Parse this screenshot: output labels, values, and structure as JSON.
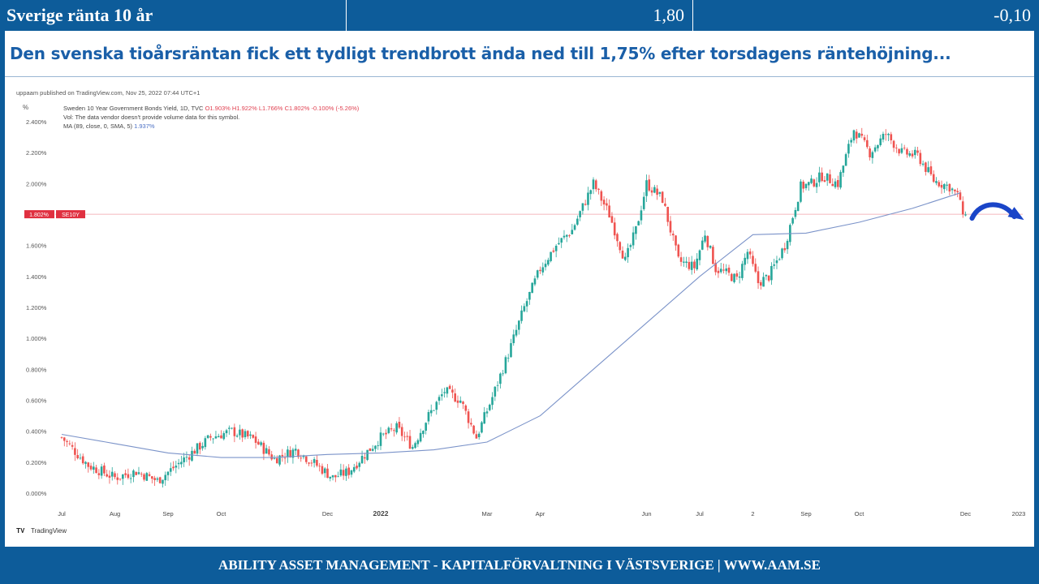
{
  "header": {
    "title": "Sverige ränta 10 år",
    "value": "1,80",
    "change": "-0,10"
  },
  "headline": "Den svenska tioårsräntan fick ett tydligt trendbrott ända ned till 1,75% efter torsdagens räntehöjning...",
  "footer": "ABILITY ASSET MANAGEMENT -  KAPITALFÖRVALTNING I VÄSTSVERIGE   |   WWW.AAM.SE",
  "colors": {
    "brand_blue": "#0d5c9a",
    "headline_blue": "#1a5fa8",
    "up_candle": "#26a69a",
    "down_candle": "#ef5350",
    "ma_line": "#7b93c9",
    "price_line": "#f0a0a8",
    "price_label_bg": "#e03040",
    "arrow": "#1a45c8"
  },
  "chart_data": {
    "type": "candlestick",
    "published_note": "uppaam published on TradingView.com, Nov 25, 2022 07:44 UTC+1",
    "unit_label": "%",
    "legend": {
      "symbol_line": "Sweden 10 Year Government Bonds Yield, 1D, TVC",
      "ohlc": {
        "O": "1.903%",
        "H": "1.922%",
        "L": "1.766%",
        "C": "1.802%",
        "change": "-0.100% (-5.26%)"
      },
      "volume_note": "Vol: The data vendor doesn't provide volume data for this symbol.",
      "ma_label": "MA (89, close, 0, SMA, 5)",
      "ma_value": "1.937%"
    },
    "y_axis": {
      "ticks": [
        "0.000%",
        "0.200%",
        "0.400%",
        "0.600%",
        "0.800%",
        "1.000%",
        "1.200%",
        "1.400%",
        "1.600%",
        "1.800%",
        "2.000%",
        "2.200%",
        "2.400%"
      ],
      "range": [
        0,
        2.5
      ]
    },
    "x_axis": {
      "labels": [
        {
          "text": "Jul",
          "bold": false,
          "month": 0
        },
        {
          "text": "Aug",
          "bold": false,
          "month": 1
        },
        {
          "text": "Sep",
          "bold": false,
          "month": 2
        },
        {
          "text": "Oct",
          "bold": false,
          "month": 3
        },
        {
          "text": "Dec",
          "bold": false,
          "month": 5
        },
        {
          "text": "2022",
          "bold": true,
          "month": 6
        },
        {
          "text": "Mar",
          "bold": false,
          "month": 8
        },
        {
          "text": "Apr",
          "bold": false,
          "month": 9
        },
        {
          "text": "Jun",
          "bold": false,
          "month": 11
        },
        {
          "text": "Jul",
          "bold": false,
          "month": 12
        },
        {
          "text": "2",
          "bold": false,
          "month": 13
        },
        {
          "text": "Sep",
          "bold": false,
          "month": 14
        },
        {
          "text": "Oct",
          "bold": false,
          "month": 15
        },
        {
          "text": "Dec",
          "bold": false,
          "month": 17
        },
        {
          "text": "2023",
          "bold": false,
          "month": 18
        }
      ]
    },
    "last_price": {
      "value": 1.802,
      "label": "1.802%",
      "symbol": "SE10Y"
    },
    "close_series": {
      "months": [
        0,
        0.5,
        1,
        1.4,
        1.8,
        2.3,
        2.8,
        3.2,
        3.6,
        4.0,
        4.4,
        4.8,
        5.1,
        5.4,
        5.7,
        6.0,
        6.3,
        6.6,
        6.9,
        7.2,
        7.5,
        7.8,
        8.1,
        8.4,
        8.7,
        9.0,
        9.3,
        9.6,
        10.0,
        10.3,
        10.6,
        10.8,
        11.0,
        11.3,
        11.6,
        11.9,
        12.1,
        12.3,
        12.5,
        12.7,
        12.9,
        13.1,
        13.3,
        13.6,
        13.9,
        14.1,
        14.3,
        14.6,
        14.9,
        15.2,
        15.5,
        15.8,
        16.1,
        16.4,
        16.7,
        16.9,
        17.0
      ],
      "values": [
        0.36,
        0.18,
        0.1,
        0.14,
        0.08,
        0.22,
        0.36,
        0.4,
        0.35,
        0.22,
        0.28,
        0.18,
        0.1,
        0.14,
        0.25,
        0.36,
        0.42,
        0.3,
        0.5,
        0.66,
        0.6,
        0.36,
        0.62,
        0.9,
        1.2,
        1.45,
        1.6,
        1.7,
        2.0,
        1.8,
        1.5,
        1.7,
        2.0,
        1.9,
        1.5,
        1.46,
        1.68,
        1.45,
        1.42,
        1.38,
        1.56,
        1.36,
        1.4,
        1.6,
        1.98,
        2.0,
        2.05,
        2.0,
        2.35,
        2.2,
        2.32,
        2.2,
        2.18,
        2.02,
        1.98,
        1.9,
        1.8
      ]
    },
    "ma_series": {
      "months": [
        0,
        1,
        2,
        3,
        4,
        5,
        6,
        7,
        8,
        9,
        10,
        11,
        12,
        13,
        14,
        15,
        16,
        16.9
      ],
      "values": [
        0.38,
        0.32,
        0.26,
        0.23,
        0.23,
        0.25,
        0.26,
        0.28,
        0.33,
        0.5,
        0.8,
        1.1,
        1.4,
        1.67,
        1.68,
        1.75,
        1.84,
        1.94
      ]
    },
    "annotation": "curved arrow pointing down-right after last candle"
  }
}
